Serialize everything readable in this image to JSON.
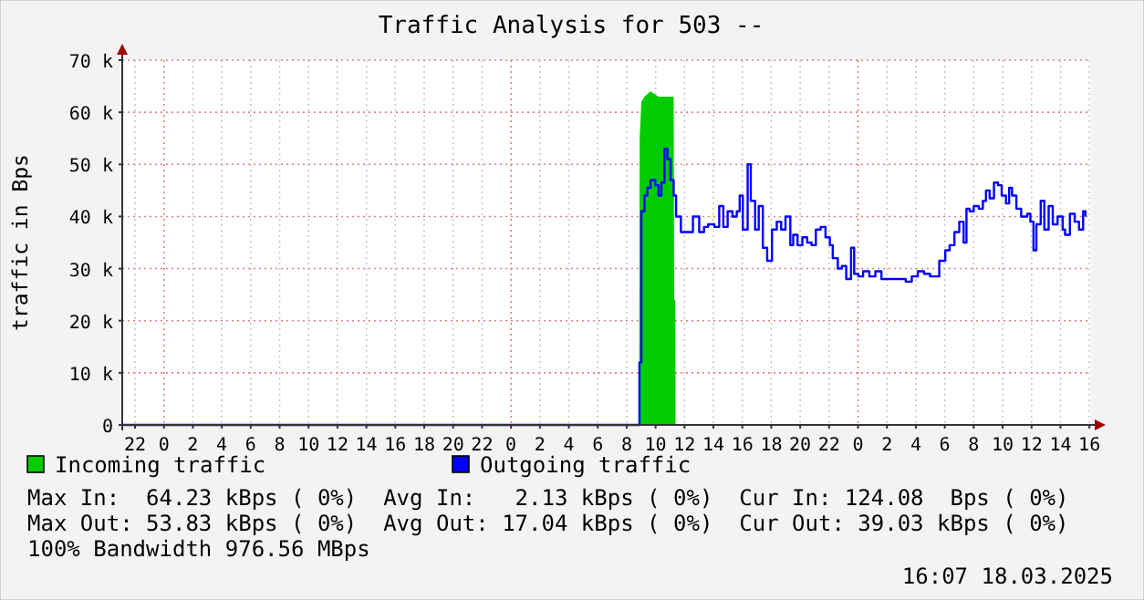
{
  "chart_data": {
    "type": "area",
    "title": "Traffic Analysis for 503 --",
    "ylabel": "traffic in Bps",
    "xlim": [
      "2025-03-15T21:07",
      "2025-03-18T16:07"
    ],
    "xticks": [
      {
        "value": "2025-03-15T22:00",
        "label": "22"
      },
      {
        "value": "2025-03-16T00:00",
        "label": "0"
      },
      {
        "value": "2025-03-16T02:00",
        "label": "2"
      },
      {
        "value": "2025-03-16T04:00",
        "label": "4"
      },
      {
        "value": "2025-03-16T06:00",
        "label": "6"
      },
      {
        "value": "2025-03-16T08:00",
        "label": "8"
      },
      {
        "value": "2025-03-16T10:00",
        "label": "10"
      },
      {
        "value": "2025-03-16T12:00",
        "label": "12"
      },
      {
        "value": "2025-03-16T14:00",
        "label": "14"
      },
      {
        "value": "2025-03-16T16:00",
        "label": "16"
      },
      {
        "value": "2025-03-16T18:00",
        "label": "18"
      },
      {
        "value": "2025-03-16T20:00",
        "label": "20"
      },
      {
        "value": "2025-03-16T22:00",
        "label": "22"
      },
      {
        "value": "2025-03-17T00:00",
        "label": "0"
      },
      {
        "value": "2025-03-17T02:00",
        "label": "2"
      },
      {
        "value": "2025-03-17T04:00",
        "label": "4"
      },
      {
        "value": "2025-03-17T06:00",
        "label": "6"
      },
      {
        "value": "2025-03-17T08:00",
        "label": "8"
      },
      {
        "value": "2025-03-17T10:00",
        "label": "10"
      },
      {
        "value": "2025-03-17T12:00",
        "label": "12"
      },
      {
        "value": "2025-03-17T14:00",
        "label": "14"
      },
      {
        "value": "2025-03-17T16:00",
        "label": "16"
      },
      {
        "value": "2025-03-17T18:00",
        "label": "18"
      },
      {
        "value": "2025-03-17T20:00",
        "label": "20"
      },
      {
        "value": "2025-03-17T22:00",
        "label": "22"
      },
      {
        "value": "2025-03-18T00:00",
        "label": "0"
      },
      {
        "value": "2025-03-18T02:00",
        "label": "2"
      },
      {
        "value": "2025-03-18T04:00",
        "label": "4"
      },
      {
        "value": "2025-03-18T06:00",
        "label": "6"
      },
      {
        "value": "2025-03-18T08:00",
        "label": "8"
      },
      {
        "value": "2025-03-18T10:00",
        "label": "10"
      },
      {
        "value": "2025-03-18T12:00",
        "label": "12"
      },
      {
        "value": "2025-03-18T14:00",
        "label": "14"
      },
      {
        "value": "2025-03-18T16:00",
        "label": "16"
      }
    ],
    "ylim": [
      0,
      70000
    ],
    "yticks": [
      0,
      {
        "value": 10000,
        "label": "10 k"
      },
      {
        "value": 20000,
        "label": "20 k"
      },
      {
        "value": 30000,
        "label": "30 k"
      },
      {
        "value": 40000,
        "label": "40 k"
      },
      {
        "value": 50000,
        "label": "50 k"
      },
      {
        "value": 60000,
        "label": "60 k"
      },
      {
        "value": 70000,
        "label": "70 k"
      }
    ],
    "grid": true,
    "legend": "bottom",
    "series": [
      {
        "name": "Incoming traffic",
        "color": "#00cc00",
        "x": [
          "2025-03-15T21:07",
          "2025-03-17T08:52",
          "2025-03-17T08:54",
          "2025-03-17T09:01",
          "2025-03-17T09:14",
          "2025-03-17T09:39",
          "2025-03-17T10:12",
          "2025-03-17T11:15",
          "2025-03-17T11:17",
          "2025-03-17T11:22",
          "2025-03-17T11:23",
          "2025-03-18T16:07"
        ],
        "values": [
          0,
          0,
          55000,
          62000,
          63000,
          64000,
          63000,
          63000,
          24000,
          24000,
          0,
          0
        ]
      },
      {
        "name": "Outgoing traffic",
        "color": "#0000ff",
        "type": "step",
        "x": [
          "2025-03-15T21:07",
          "2025-03-17T08:48",
          "2025-03-17T08:53",
          "2025-03-17T09:01",
          "2025-03-17T09:14",
          "2025-03-17T09:26",
          "2025-03-17T09:39",
          "2025-03-17T09:59",
          "2025-03-17T10:12",
          "2025-03-17T10:24",
          "2025-03-17T10:37",
          "2025-03-17T10:49",
          "2025-03-17T11:02",
          "2025-03-17T11:15",
          "2025-03-17T11:25",
          "2025-03-17T11:45",
          "2025-03-17T12:10",
          "2025-03-17T12:35",
          "2025-03-17T13:01",
          "2025-03-17T13:21",
          "2025-03-17T13:38",
          "2025-03-17T14:04",
          "2025-03-17T14:24",
          "2025-03-17T14:41",
          "2025-03-17T14:59",
          "2025-03-17T15:19",
          "2025-03-17T15:37",
          "2025-03-17T15:49",
          "2025-03-17T16:02",
          "2025-03-17T16:22",
          "2025-03-17T16:35",
          "2025-03-17T16:53",
          "2025-03-17T17:08",
          "2025-03-17T17:25",
          "2025-03-17T17:43",
          "2025-03-17T18:03",
          "2025-03-17T18:23",
          "2025-03-17T18:41",
          "2025-03-17T18:59",
          "2025-03-17T19:19",
          "2025-03-17T19:31",
          "2025-03-17T19:49",
          "2025-03-17T20:09",
          "2025-03-17T20:29",
          "2025-03-17T20:47",
          "2025-03-17T21:05",
          "2025-03-17T21:25",
          "2025-03-17T21:45",
          "2025-03-17T22:03",
          "2025-03-17T22:15",
          "2025-03-17T22:36",
          "2025-03-17T22:53",
          "2025-03-17T23:11",
          "2025-03-17T23:31",
          "2025-03-17T23:44",
          "2025-03-18T00:01",
          "2025-03-18T00:21",
          "2025-03-18T00:47",
          "2025-03-18T01:12",
          "2025-03-18T01:37",
          "2025-03-18T02:02",
          "2025-03-18T02:28",
          "2025-03-18T02:53",
          "2025-03-18T03:18",
          "2025-03-18T03:43",
          "2025-03-18T04:08",
          "2025-03-18T04:34",
          "2025-03-18T04:59",
          "2025-03-18T05:24",
          "2025-03-18T05:37",
          "2025-03-18T06:02",
          "2025-03-18T06:20",
          "2025-03-18T06:40",
          "2025-03-18T07:00",
          "2025-03-18T07:18",
          "2025-03-18T07:30",
          "2025-03-18T07:43",
          "2025-03-18T08:00",
          "2025-03-18T08:21",
          "2025-03-18T08:38",
          "2025-03-18T08:51",
          "2025-03-18T09:06",
          "2025-03-18T09:24",
          "2025-03-18T09:41",
          "2025-03-18T09:56",
          "2025-03-18T10:14",
          "2025-03-18T10:27",
          "2025-03-18T10:39",
          "2025-03-18T10:57",
          "2025-03-18T11:17",
          "2025-03-18T11:42",
          "2025-03-18T11:55",
          "2025-03-18T12:08",
          "2025-03-18T12:20",
          "2025-03-18T12:38",
          "2025-03-18T12:53",
          "2025-03-18T13:11",
          "2025-03-18T13:28",
          "2025-03-18T13:48",
          "2025-03-18T14:09",
          "2025-03-18T14:19",
          "2025-03-18T14:39",
          "2025-03-18T14:59",
          "2025-03-18T15:17",
          "2025-03-18T15:34",
          "2025-03-18T15:44"
        ],
        "values": [
          0,
          0,
          12000,
          41000,
          44000,
          45500,
          47000,
          46000,
          44000,
          46500,
          53000,
          51000,
          47000,
          44000,
          40000,
          37000,
          37000,
          40000,
          37000,
          38000,
          38500,
          38000,
          42000,
          38000,
          41000,
          40000,
          41000,
          44000,
          37500,
          50000,
          43000,
          37500,
          42000,
          34000,
          31500,
          37500,
          39000,
          37500,
          40000,
          34500,
          36500,
          34500,
          36000,
          35000,
          34500,
          37500,
          38000,
          36000,
          34500,
          32000,
          30000,
          30500,
          28000,
          34000,
          29000,
          28500,
          29500,
          28500,
          29500,
          28000,
          28000,
          28000,
          28000,
          27500,
          28500,
          29500,
          29000,
          28500,
          28500,
          31500,
          33500,
          34500,
          37000,
          39000,
          35000,
          41500,
          41000,
          42000,
          41500,
          43000,
          45000,
          43500,
          46500,
          46000,
          44000,
          42500,
          45500,
          44000,
          41500,
          40000,
          40500,
          39000,
          33500,
          38500,
          43000,
          37500,
          42000,
          38500,
          40000,
          37500,
          36500,
          40500,
          39000,
          37500,
          41000,
          40000
        ]
      }
    ],
    "annotations": [
      "Max In:  64.23 kBps ( 0%)  Avg In:   2.13 kBps ( 0%)  Cur In: 124.08  Bps ( 0%)",
      "Max Out: 53.83 kBps ( 0%)  Avg Out: 17.04 kBps ( 0%)  Cur Out: 39.03 kBps ( 0%)",
      "100% Bandwidth 976.56 MBps",
      "16:07 18.03.2025"
    ]
  }
}
